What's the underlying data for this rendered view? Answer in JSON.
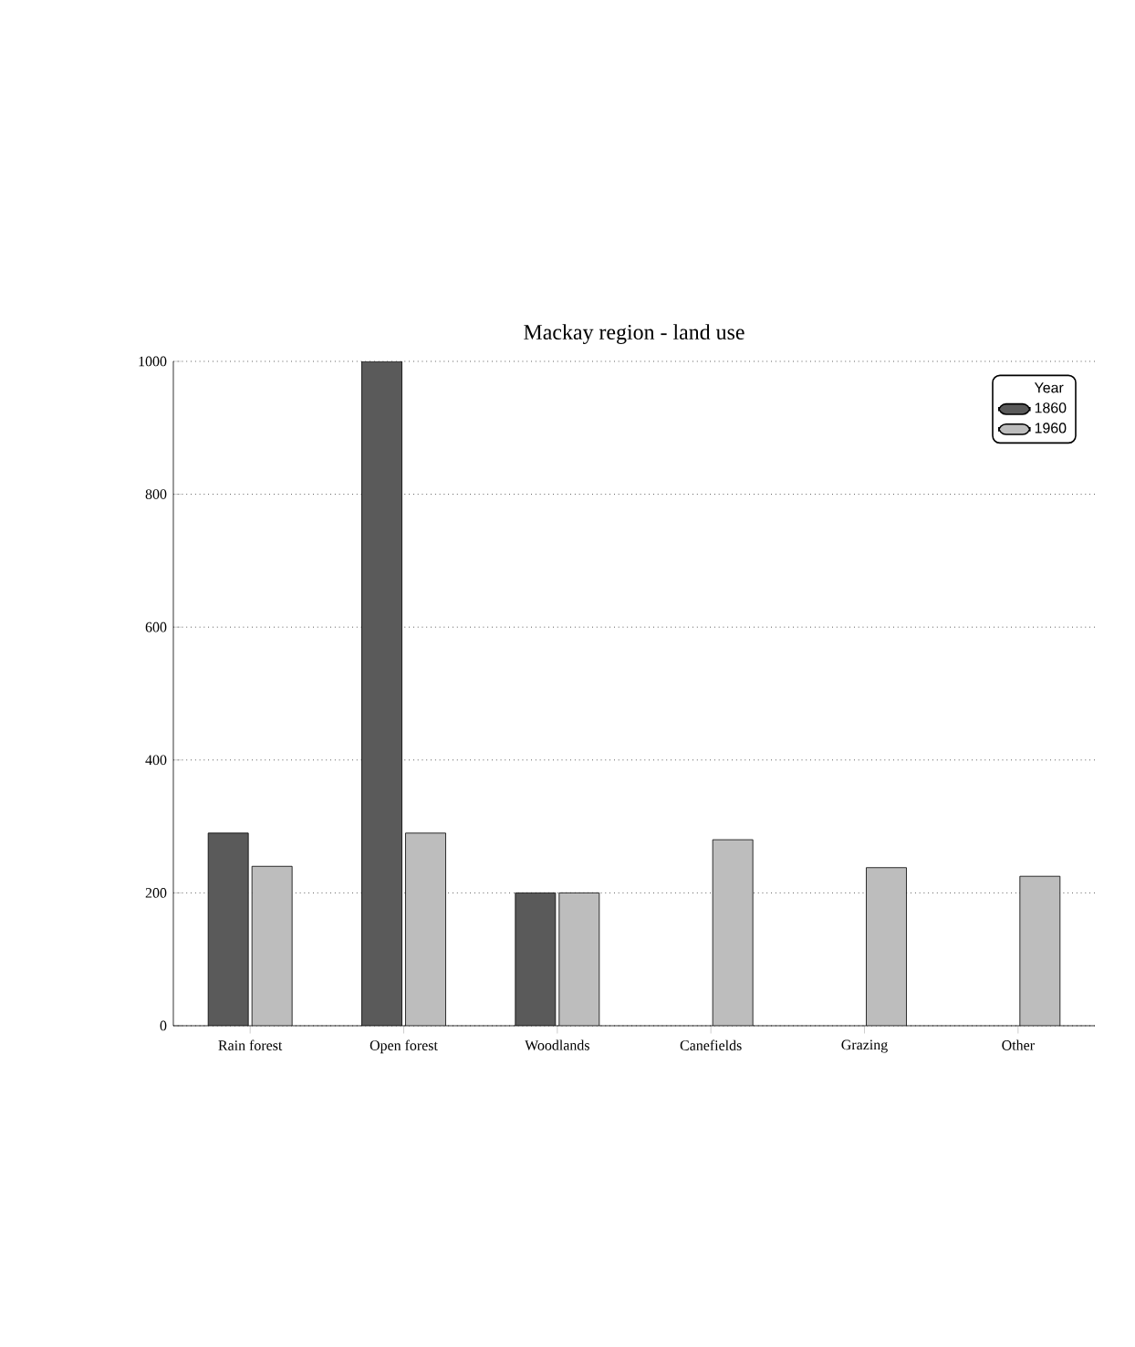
{
  "chart_data": {
    "type": "bar",
    "title": "Mackay region - land use",
    "categories": [
      "Rain forest",
      "Open forest",
      "Woodlands",
      "Canefields",
      "Grazing",
      "Other"
    ],
    "series": [
      {
        "name": "1860",
        "color": "#5a5a5a",
        "values": [
          290,
          1000,
          200,
          null,
          null,
          null
        ]
      },
      {
        "name": "1960",
        "color": "#bdbdbd",
        "values": [
          240,
          290,
          200,
          280,
          238,
          225
        ]
      }
    ],
    "legend_title": "Year",
    "legend": "top right",
    "grid": "y",
    "ylim": [
      0,
      1000
    ],
    "yticks": [
      0,
      200,
      400,
      600,
      800,
      1000
    ]
  }
}
